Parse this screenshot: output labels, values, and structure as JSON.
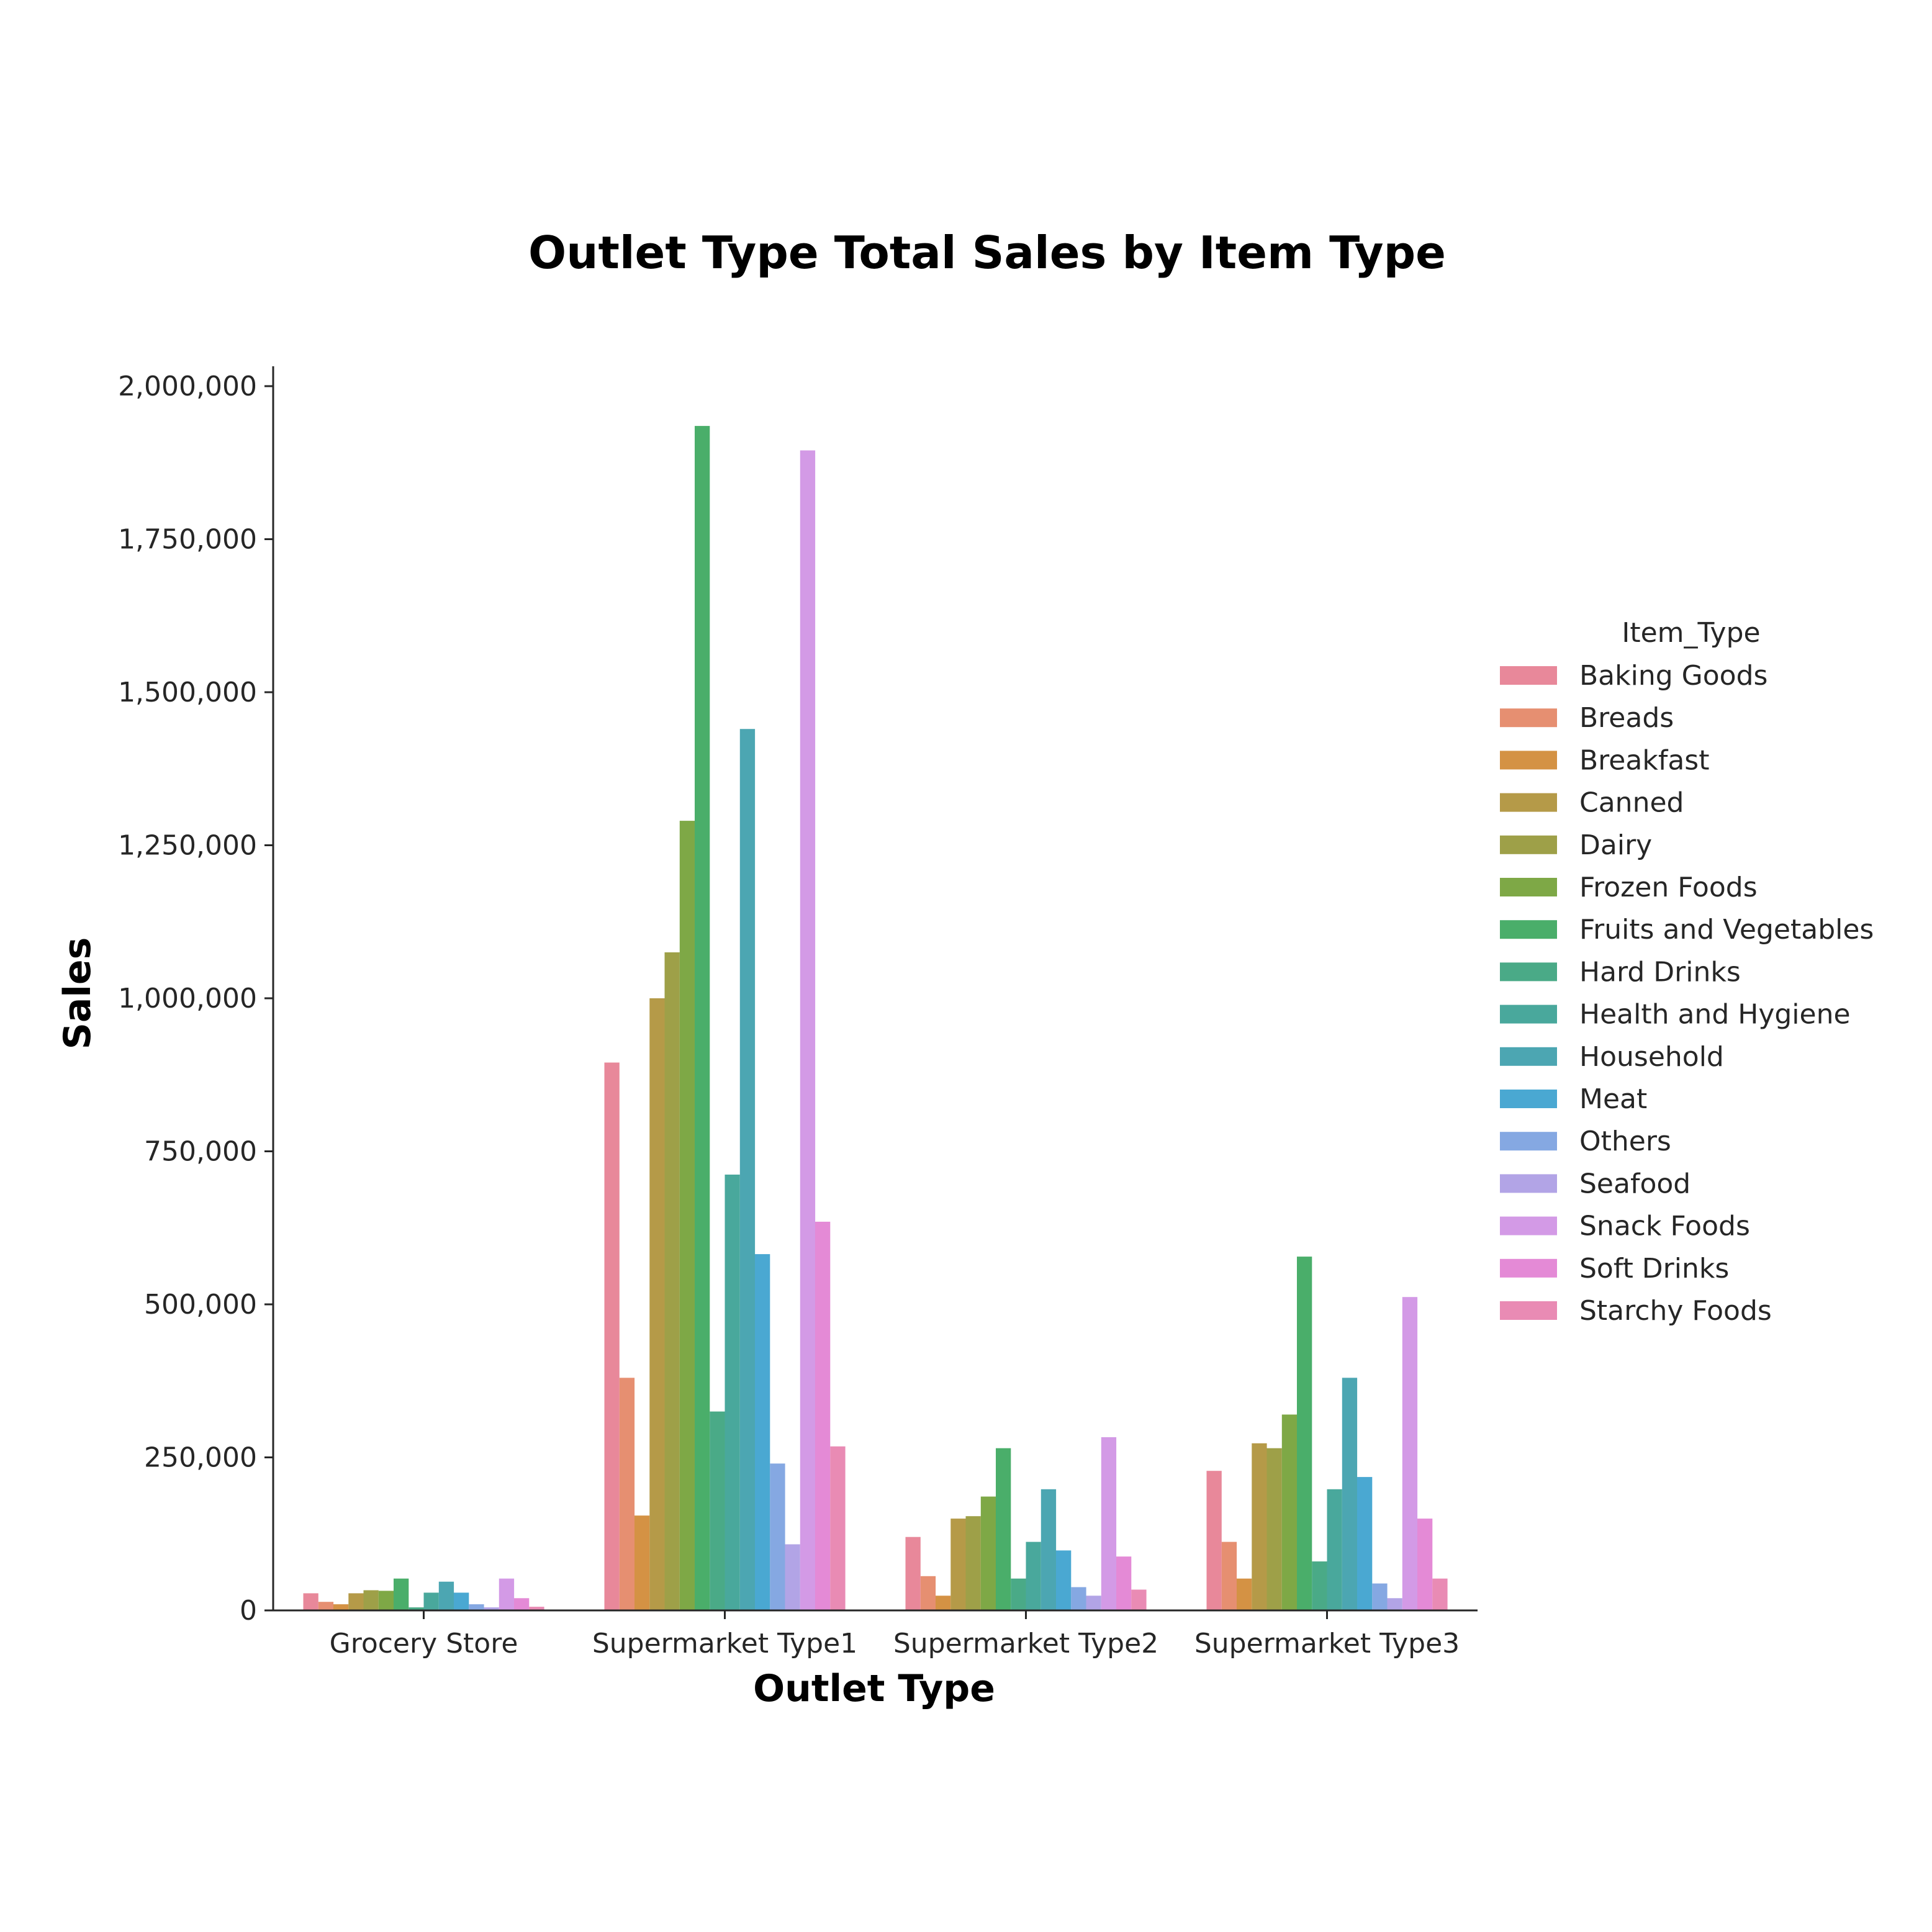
{
  "chart_data": {
    "type": "bar",
    "title": "Outlet Type Total Sales by Item Type",
    "xlabel": "Outlet Type",
    "ylabel": "Sales",
    "ylim": [
      0,
      2000000
    ],
    "yticks": [
      0,
      250000,
      500000,
      750000,
      1000000,
      1250000,
      1500000,
      1750000,
      2000000
    ],
    "ytick_labels": [
      "0",
      "250,000",
      "500,000",
      "750,000",
      "1,000,000",
      "1,250,000",
      "1,500,000",
      "1,750,000",
      "2,000,000"
    ],
    "grid": false,
    "legend_title": "Item_Type",
    "legend_position": "right",
    "categories": [
      "Grocery Store",
      "Supermarket Type1",
      "Supermarket Type2",
      "Supermarket Type3"
    ],
    "series": [
      {
        "name": "Baking Goods",
        "color": "#e8889a",
        "values": [
          28000,
          895000,
          120000,
          228000
        ]
      },
      {
        "name": "Breads",
        "color": "#e68f71",
        "values": [
          14000,
          380000,
          56000,
          112000
        ]
      },
      {
        "name": "Breakfast",
        "color": "#d49244",
        "values": [
          10000,
          155000,
          24000,
          52000
        ]
      },
      {
        "name": "Canned",
        "color": "#b59a48",
        "values": [
          28000,
          1000000,
          150000,
          273000
        ]
      },
      {
        "name": "Dairy",
        "color": "#9ea048",
        "values": [
          33000,
          1075000,
          154000,
          265000
        ]
      },
      {
        "name": "Frozen Foods",
        "color": "#7ea846",
        "values": [
          32000,
          1290000,
          186000,
          320000
        ]
      },
      {
        "name": "Fruits and Vegetables",
        "color": "#4aae6a",
        "values": [
          52000,
          1935000,
          265000,
          578000
        ]
      },
      {
        "name": "Hard Drinks",
        "color": "#4aaa87",
        "values": [
          5000,
          325000,
          52000,
          80000
        ]
      },
      {
        "name": "Health and Hygiene",
        "color": "#49a89c",
        "values": [
          29000,
          712000,
          112000,
          198000
        ]
      },
      {
        "name": "Household",
        "color": "#4ca6b2",
        "values": [
          47000,
          1440000,
          198000,
          380000
        ]
      },
      {
        "name": "Meat",
        "color": "#4aa8d2",
        "values": [
          29000,
          582000,
          98000,
          218000
        ]
      },
      {
        "name": "Others",
        "color": "#85a8e2",
        "values": [
          10000,
          240000,
          38000,
          44000
        ]
      },
      {
        "name": "Seafood",
        "color": "#b2a4e6",
        "values": [
          5000,
          108000,
          24000,
          20000
        ]
      },
      {
        "name": "Snack Foods",
        "color": "#d39ae6",
        "values": [
          52000,
          1895000,
          283000,
          512000
        ]
      },
      {
        "name": "Soft Drinks",
        "color": "#e48ad6",
        "values": [
          20000,
          635000,
          88000,
          150000
        ]
      },
      {
        "name": "Starchy Foods",
        "color": "#e98bb4",
        "values": [
          6000,
          268000,
          34000,
          52000
        ]
      }
    ]
  }
}
